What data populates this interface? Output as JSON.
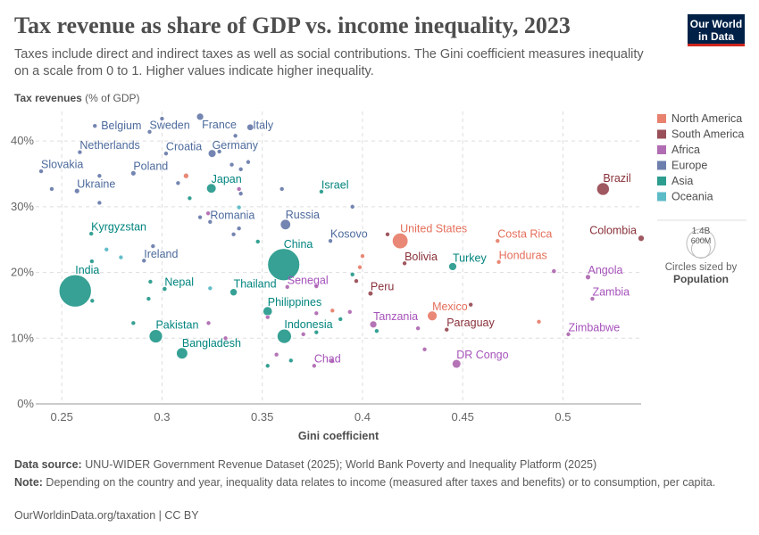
{
  "title": "Tax revenue as share of GDP vs. income inequality, 2023",
  "subtitle": "Taxes include direct and indirect taxes as well as social contributions. The Gini coefficient measures inequality on a scale from 0 to 1. Higher values indicate higher inequality.",
  "logo": {
    "line1": "Our World",
    "line2": "in Data"
  },
  "footer": {
    "source_label": "Data source:",
    "source": " UNU-WIDER Government Revenue Dataset (2025); World Bank Poverty and Inequality Platform (2025)",
    "note_label": "Note:",
    "note": " Depending on the country and year, inequality data relates to income (measured after taxes and benefits) or to consumption, per capita.",
    "url": "OurWorldinData.org/taxation | CC BY"
  },
  "colors": {
    "North America": "#e8826f",
    "South America": "#9a4f58",
    "Africa": "#b16db3",
    "Europe": "#6d7fad",
    "Asia": "#2c9d8f",
    "Oceania": "#5bbbc7"
  },
  "label_colors": {
    "North America": "#e56e5a",
    "South America": "#883039",
    "Africa": "#a652ba",
    "Europe": "#4c6a9c",
    "Asia": "#00847e",
    "Oceania": "#2a9fae"
  },
  "chart_data": {
    "type": "scatter",
    "title": "Tax revenue as share of GDP vs. income inequality, 2023",
    "xlabel": "Gini coefficient",
    "ylabel_bold": "Tax revenues",
    "ylabel_rest": " (% of GDP)",
    "xlim": [
      0.237,
      0.539
    ],
    "ylim": [
      0,
      44.5
    ],
    "xticks": [
      0.25,
      0.3,
      0.35,
      0.4,
      0.45,
      0.5
    ],
    "xtick_labels": [
      "0.25",
      "0.3",
      "0.35",
      "0.4",
      "0.45",
      "0.5"
    ],
    "yticks": [
      0,
      10,
      20,
      30,
      40
    ],
    "ytick_labels": [
      "0%",
      "10%",
      "20%",
      "30%",
      "40%"
    ],
    "grid": true,
    "legend": {
      "placement": "right",
      "entries": [
        "North America",
        "South America",
        "Africa",
        "Europe",
        "Asia",
        "Oceania"
      ],
      "size_title": "Circles sized by",
      "size_var": "Population",
      "size_values": [
        "1.4B",
        "600M"
      ]
    },
    "points": [
      {
        "name": "Belgium",
        "region": "Europe",
        "x": 0.2665,
        "y": 42.3,
        "pop": 12,
        "label": true
      },
      {
        "name": "Sweden",
        "region": "Europe",
        "x": 0.2938,
        "y": 41.4,
        "pop": 10.5,
        "label": true
      },
      {
        "name": "France",
        "region": "Europe",
        "x": 0.319,
        "y": 43.7,
        "pop": 68,
        "label": true
      },
      {
        "name": "Italy",
        "region": "Europe",
        "x": 0.344,
        "y": 42.1,
        "pop": 59,
        "label": true
      },
      {
        "name": "Netherlands",
        "region": "Europe",
        "x": 0.259,
        "y": 38.3,
        "pop": 18,
        "label": true
      },
      {
        "name": "Croatia",
        "region": "Europe",
        "x": 0.302,
        "y": 38.1,
        "pop": 3.9,
        "label": true
      },
      {
        "name": "Germany",
        "region": "Europe",
        "x": 0.325,
        "y": 38.1,
        "pop": 84,
        "label": true
      },
      {
        "name": "Slovakia",
        "region": "Europe",
        "x": 0.2397,
        "y": 35.4,
        "pop": 5.4,
        "label": true
      },
      {
        "name": "Poland",
        "region": "Europe",
        "x": 0.2857,
        "y": 35.1,
        "pop": 37,
        "label": true
      },
      {
        "name": "Ukraine",
        "region": "Europe",
        "x": 0.2576,
        "y": 32.4,
        "pop": 37,
        "label": true
      },
      {
        "name": "Japan",
        "region": "Asia",
        "x": 0.3246,
        "y": 32.8,
        "pop": 124,
        "label": true
      },
      {
        "name": "Romania",
        "region": "Europe",
        "x": 0.324,
        "y": 27.7,
        "pop": 19,
        "label": true
      },
      {
        "name": "Kyrgyzstan",
        "region": "Asia",
        "x": 0.2647,
        "y": 25.9,
        "pop": 7,
        "label": true
      },
      {
        "name": "Ireland",
        "region": "Europe",
        "x": 0.291,
        "y": 21.8,
        "pop": 5.2,
        "label": true
      },
      {
        "name": "Israel",
        "region": "Asia",
        "x": 0.3795,
        "y": 32.3,
        "pop": 10,
        "label": true
      },
      {
        "name": "Russia",
        "region": "Europe",
        "x": 0.3616,
        "y": 27.3,
        "pop": 144,
        "label": true
      },
      {
        "name": "Kosovo",
        "region": "Europe",
        "x": 0.384,
        "y": 24.8,
        "pop": 1.8,
        "label": true
      },
      {
        "name": "United States",
        "region": "North America",
        "x": 0.4188,
        "y": 24.8,
        "pop": 335,
        "label": true
      },
      {
        "name": "China",
        "region": "Asia",
        "x": 0.3607,
        "y": 21.2,
        "pop": 1410,
        "label": true
      },
      {
        "name": "India",
        "region": "Asia",
        "x": 0.2567,
        "y": 17.2,
        "pop": 1430,
        "label": true
      },
      {
        "name": "Nepal",
        "region": "Asia",
        "x": 0.3013,
        "y": 17.5,
        "pop": 30,
        "label": true
      },
      {
        "name": "Thailand",
        "region": "Asia",
        "x": 0.3357,
        "y": 17.0,
        "pop": 71,
        "label": true
      },
      {
        "name": "Pakistan",
        "region": "Asia",
        "x": 0.2969,
        "y": 10.3,
        "pop": 240,
        "label": true
      },
      {
        "name": "Bangladesh",
        "region": "Asia",
        "x": 0.31,
        "y": 7.7,
        "pop": 172,
        "label": true
      },
      {
        "name": "Bolivia",
        "region": "South America",
        "x": 0.421,
        "y": 21.4,
        "pop": 12,
        "label": true
      },
      {
        "name": "Turkey",
        "region": "Asia",
        "x": 0.445,
        "y": 20.9,
        "pop": 85,
        "label": true
      },
      {
        "name": "Senegal",
        "region": "Africa",
        "x": 0.3625,
        "y": 17.8,
        "pop": 18,
        "label": true
      },
      {
        "name": "Peru",
        "region": "South America",
        "x": 0.404,
        "y": 16.8,
        "pop": 34,
        "label": true
      },
      {
        "name": "Philippines",
        "region": "Asia",
        "x": 0.3527,
        "y": 14.1,
        "pop": 117,
        "label": true
      },
      {
        "name": "Mexico",
        "region": "North America",
        "x": 0.4348,
        "y": 13.4,
        "pop": 128,
        "label": true
      },
      {
        "name": "Tanzania",
        "region": "Africa",
        "x": 0.4054,
        "y": 12.1,
        "pop": 67,
        "label": true
      },
      {
        "name": "Paraguay",
        "region": "South America",
        "x": 0.442,
        "y": 11.3,
        "pop": 7,
        "label": true
      },
      {
        "name": "Indonesia",
        "region": "Asia",
        "x": 0.361,
        "y": 10.3,
        "pop": 277,
        "label": true
      },
      {
        "name": "Chad",
        "region": "Africa",
        "x": 0.3759,
        "y": 5.8,
        "pop": 18,
        "label": true
      },
      {
        "name": "DR Congo",
        "region": "Africa",
        "x": 0.4469,
        "y": 6.1,
        "pop": 102,
        "label": true
      },
      {
        "name": "Brazil",
        "region": "South America",
        "x": 0.52,
        "y": 32.7,
        "pop": 216,
        "label": true
      },
      {
        "name": "Colombia",
        "region": "South America",
        "x": 0.539,
        "y": 25.2,
        "pop": 52,
        "label": true
      },
      {
        "name": "Costa Rica",
        "region": "North America",
        "x": 0.4674,
        "y": 24.8,
        "pop": 5.2,
        "label": true
      },
      {
        "name": "Honduras",
        "region": "North America",
        "x": 0.468,
        "y": 21.6,
        "pop": 10,
        "label": true
      },
      {
        "name": "Angola",
        "region": "Africa",
        "x": 0.5125,
        "y": 19.3,
        "pop": 37,
        "label": true
      },
      {
        "name": "Zambia",
        "region": "Africa",
        "x": 0.5147,
        "y": 16.0,
        "pop": 20,
        "label": true
      },
      {
        "name": "Zimbabwe",
        "region": "Africa",
        "x": 0.5027,
        "y": 10.6,
        "pop": 16,
        "label": true
      },
      {
        "region": "Africa",
        "x": 0.4955,
        "y": 20.2,
        "pop": 30
      },
      {
        "region": "Europe",
        "x": 0.3,
        "y": 43.4,
        "pop": 5
      },
      {
        "region": "Europe",
        "x": 0.3366,
        "y": 40.8,
        "pop": 5
      },
      {
        "region": "Europe",
        "x": 0.343,
        "y": 36.8,
        "pop": 5
      },
      {
        "region": "Europe",
        "x": 0.3348,
        "y": 36.4,
        "pop": 10
      },
      {
        "region": "Europe",
        "x": 0.3393,
        "y": 35.7,
        "pop": 5
      },
      {
        "region": "Europe",
        "x": 0.3286,
        "y": 38.4,
        "pop": 4
      },
      {
        "region": "Europe",
        "x": 0.245,
        "y": 32.7,
        "pop": 4
      },
      {
        "region": "Europe",
        "x": 0.2688,
        "y": 34.7,
        "pop": 4
      },
      {
        "region": "Europe",
        "x": 0.308,
        "y": 33.6,
        "pop": 4
      },
      {
        "region": "Europe",
        "x": 0.3393,
        "y": 32.0,
        "pop": 4
      },
      {
        "region": "Europe",
        "x": 0.2688,
        "y": 30.6,
        "pop": 4
      },
      {
        "region": "Europe",
        "x": 0.319,
        "y": 28.4,
        "pop": 4
      },
      {
        "region": "Europe",
        "x": 0.3384,
        "y": 26.7,
        "pop": 4
      },
      {
        "region": "Europe",
        "x": 0.3357,
        "y": 25.8,
        "pop": 4
      },
      {
        "region": "Europe",
        "x": 0.3598,
        "y": 32.7,
        "pop": 4
      },
      {
        "region": "Europe",
        "x": 0.395,
        "y": 30.0,
        "pop": 4
      },
      {
        "region": "Europe",
        "x": 0.2955,
        "y": 24.0,
        "pop": 4
      },
      {
        "region": "North America",
        "x": 0.312,
        "y": 34.7,
        "pop": 39
      },
      {
        "region": "North America",
        "x": 0.4,
        "y": 22.5,
        "pop": 3
      },
      {
        "region": "North America",
        "x": 0.3987,
        "y": 20.8,
        "pop": 3
      },
      {
        "region": "North America",
        "x": 0.385,
        "y": 14.2,
        "pop": 3
      },
      {
        "region": "North America",
        "x": 0.488,
        "y": 12.5,
        "pop": 3
      },
      {
        "region": "South America",
        "x": 0.4125,
        "y": 25.8,
        "pop": 3
      },
      {
        "region": "South America",
        "x": 0.3969,
        "y": 18.7,
        "pop": 3
      },
      {
        "region": "South America",
        "x": 0.454,
        "y": 15.1,
        "pop": 3
      },
      {
        "region": "Africa",
        "x": 0.323,
        "y": 29.0,
        "pop": 3
      },
      {
        "region": "Africa",
        "x": 0.3384,
        "y": 32.7,
        "pop": 3
      },
      {
        "region": "Africa",
        "x": 0.377,
        "y": 17.9,
        "pop": 3
      },
      {
        "region": "Africa",
        "x": 0.3527,
        "y": 13.2,
        "pop": 10
      },
      {
        "region": "Africa",
        "x": 0.377,
        "y": 13.8,
        "pop": 25
      },
      {
        "region": "Africa",
        "x": 0.3937,
        "y": 14.0,
        "pop": 5
      },
      {
        "region": "Africa",
        "x": 0.3705,
        "y": 10.6,
        "pop": 10
      },
      {
        "region": "Africa",
        "x": 0.4277,
        "y": 11.5,
        "pop": 20
      },
      {
        "region": "Africa",
        "x": 0.431,
        "y": 8.3,
        "pop": 4
      },
      {
        "region": "Africa",
        "x": 0.3571,
        "y": 7.5,
        "pop": 4
      },
      {
        "region": "Africa",
        "x": 0.3848,
        "y": 6.5,
        "pop": 4
      },
      {
        "region": "Africa",
        "x": 0.3232,
        "y": 12.3,
        "pop": 4
      },
      {
        "region": "Africa",
        "x": 0.3317,
        "y": 10.0,
        "pop": 4
      },
      {
        "region": "Asia",
        "x": 0.3138,
        "y": 31.3,
        "pop": 4
      },
      {
        "region": "Asia",
        "x": 0.3478,
        "y": 24.7,
        "pop": 4
      },
      {
        "region": "Asia",
        "x": 0.265,
        "y": 21.7,
        "pop": 4
      },
      {
        "region": "Asia",
        "x": 0.2942,
        "y": 18.6,
        "pop": 4
      },
      {
        "region": "Asia",
        "x": 0.2933,
        "y": 16.0,
        "pop": 4
      },
      {
        "region": "Asia",
        "x": 0.2857,
        "y": 12.3,
        "pop": 4
      },
      {
        "region": "Asia",
        "x": 0.395,
        "y": 19.7,
        "pop": 4
      },
      {
        "region": "Asia",
        "x": 0.389,
        "y": 12.9,
        "pop": 4
      },
      {
        "region": "Asia",
        "x": 0.377,
        "y": 10.9,
        "pop": 4
      },
      {
        "region": "Asia",
        "x": 0.4071,
        "y": 11.1,
        "pop": 8
      },
      {
        "region": "Asia",
        "x": 0.3527,
        "y": 5.8,
        "pop": 4
      },
      {
        "region": "Asia",
        "x": 0.3643,
        "y": 6.6,
        "pop": 4
      },
      {
        "region": "Asia",
        "x": 0.2652,
        "y": 15.7,
        "pop": 4
      },
      {
        "region": "Oceania",
        "x": 0.3384,
        "y": 29.9,
        "pop": 5
      },
      {
        "region": "Oceania",
        "x": 0.2723,
        "y": 23.5,
        "pop": 4
      },
      {
        "region": "Oceania",
        "x": 0.2795,
        "y": 22.3,
        "pop": 4
      },
      {
        "region": "Oceania",
        "x": 0.324,
        "y": 17.6,
        "pop": 4
      }
    ]
  }
}
